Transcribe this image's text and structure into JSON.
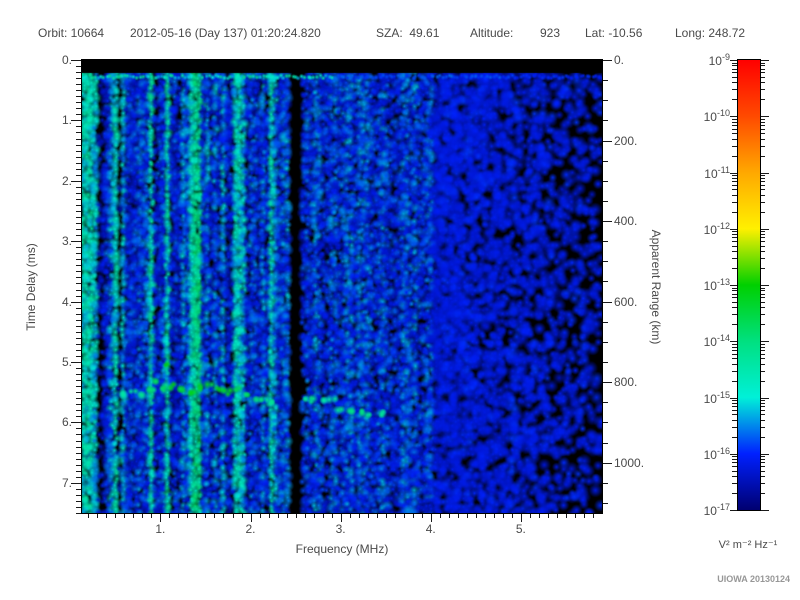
{
  "header": {
    "items": [
      "Orbit: 10664",
      "2012-05-16 (Day 137) 01:20:24.820",
      "SZA:  49.61",
      "Altitude:",
      "923",
      "Lat: -10.56",
      "Long: 248.72"
    ]
  },
  "credit": "UIOWA 20130124",
  "chart_data": {
    "type": "heatmap",
    "subtype": "radar-sounder-ionogram-spectrogram",
    "title": "",
    "xlabel": "Frequency (MHz)",
    "ylabel": "Time Delay (ms)",
    "y2label": "Apparent Range (km)",
    "x_range": [
      0.13,
      5.9
    ],
    "y_range": [
      0,
      7.5
    ],
    "y2_range": [
      0,
      1125
    ],
    "x_major_ticks": [
      1,
      2,
      3,
      4,
      5
    ],
    "x_tick_labels": [
      "1.",
      "2.",
      "3.",
      "4.",
      "5."
    ],
    "x_minor_step": 0.1,
    "y_major_ticks": [
      0,
      1,
      2,
      3,
      4,
      5,
      6,
      7
    ],
    "y_tick_labels": [
      "0.",
      "1.",
      "2.",
      "3.",
      "4.",
      "5.",
      "6.",
      "7."
    ],
    "y_minor_step": 0.1,
    "y2_major_ticks": [
      0,
      200,
      400,
      600,
      800,
      1000
    ],
    "y2_tick_labels": [
      "0.",
      "200.",
      "400.",
      "600.",
      "800.",
      "1000."
    ],
    "y2_minor_step": 50,
    "grid": false,
    "colorbar": {
      "unit": "V² m⁻² Hz⁻¹",
      "scale": "log",
      "range_exp": [
        -17,
        -9
      ],
      "ticks": [
        {
          "base": "10",
          "exp": "-9"
        },
        {
          "base": "10",
          "exp": "-10"
        },
        {
          "base": "10",
          "exp": "-11"
        },
        {
          "base": "10",
          "exp": "-12"
        },
        {
          "base": "10",
          "exp": "-13"
        },
        {
          "base": "10",
          "exp": "-14"
        },
        {
          "base": "10",
          "exp": "-15"
        },
        {
          "base": "10",
          "exp": "-16"
        },
        {
          "base": "10",
          "exp": "-17"
        }
      ],
      "stops": [
        {
          "exp": -9,
          "color": "#ff0000"
        },
        {
          "exp": -10,
          "color": "#ff4a00"
        },
        {
          "exp": -11,
          "color": "#ffa800"
        },
        {
          "exp": -12,
          "color": "#fff000"
        },
        {
          "exp": -13,
          "color": "#00d000"
        },
        {
          "exp": -14,
          "color": "#00e080"
        },
        {
          "exp": -15,
          "color": "#00f0d8"
        },
        {
          "exp": -16,
          "color": "#0020ff"
        },
        {
          "exp": -17,
          "color": "#000070"
        }
      ]
    },
    "features": {
      "top_black_bar_delay_ms": [
        0,
        0.22
      ],
      "surface_echo_line_delay_ms": 0.28,
      "surface_line_bright_below_mhz": 2.9,
      "bright_vertical_stripe_mhz": 1.39,
      "dark_vertical_band_mhz": [
        2.42,
        2.55
      ],
      "striped_interference_below_mhz": 0.62,
      "noise_fades_above_mhz": 4.0,
      "background_level_exp": -16.1
    },
    "trace": {
      "name": "ionospheric-echo-trace",
      "points": [
        {
          "f": 0.58,
          "d": 5.52,
          "b": 0.4
        },
        {
          "f": 0.7,
          "d": 5.5,
          "b": 0.45
        },
        {
          "f": 0.8,
          "d": 5.55,
          "b": 0.5
        },
        {
          "f": 0.9,
          "d": 5.45,
          "b": 0.6
        },
        {
          "f": 0.98,
          "d": 5.35,
          "b": 0.75
        },
        {
          "f": 1.05,
          "d": 5.45,
          "b": 0.7
        },
        {
          "f": 1.08,
          "d": 5.05,
          "b": 0.85
        },
        {
          "f": 1.15,
          "d": 5.4,
          "b": 0.9
        },
        {
          "f": 1.25,
          "d": 5.45,
          "b": 0.85
        },
        {
          "f": 1.35,
          "d": 5.5,
          "b": 0.9
        },
        {
          "f": 1.45,
          "d": 5.42,
          "b": 0.95
        },
        {
          "f": 1.55,
          "d": 5.38,
          "b": 0.9
        },
        {
          "f": 1.65,
          "d": 5.45,
          "b": 0.85
        },
        {
          "f": 1.75,
          "d": 5.5,
          "b": 0.8
        },
        {
          "f": 1.85,
          "d": 5.45,
          "b": 0.85
        },
        {
          "f": 1.95,
          "d": 5.55,
          "b": 0.7
        },
        {
          "f": 2.05,
          "d": 5.6,
          "b": 0.6
        },
        {
          "f": 2.15,
          "d": 5.62,
          "b": 0.55
        },
        {
          "f": 2.25,
          "d": 5.68,
          "b": 0.5
        },
        {
          "f": 2.6,
          "d": 5.6,
          "b": 0.45
        },
        {
          "f": 2.7,
          "d": 5.63,
          "b": 0.5
        },
        {
          "f": 2.8,
          "d": 5.65,
          "b": 0.45
        },
        {
          "f": 2.9,
          "d": 5.63,
          "b": 0.4
        },
        {
          "f": 3.0,
          "d": 5.8,
          "b": 0.5
        },
        {
          "f": 3.1,
          "d": 5.82,
          "b": 0.55
        },
        {
          "f": 3.2,
          "d": 5.83,
          "b": 0.55
        },
        {
          "f": 3.32,
          "d": 5.85,
          "b": 0.5
        },
        {
          "f": 3.45,
          "d": 5.85,
          "b": 0.45
        }
      ]
    },
    "seed": 20130124
  }
}
